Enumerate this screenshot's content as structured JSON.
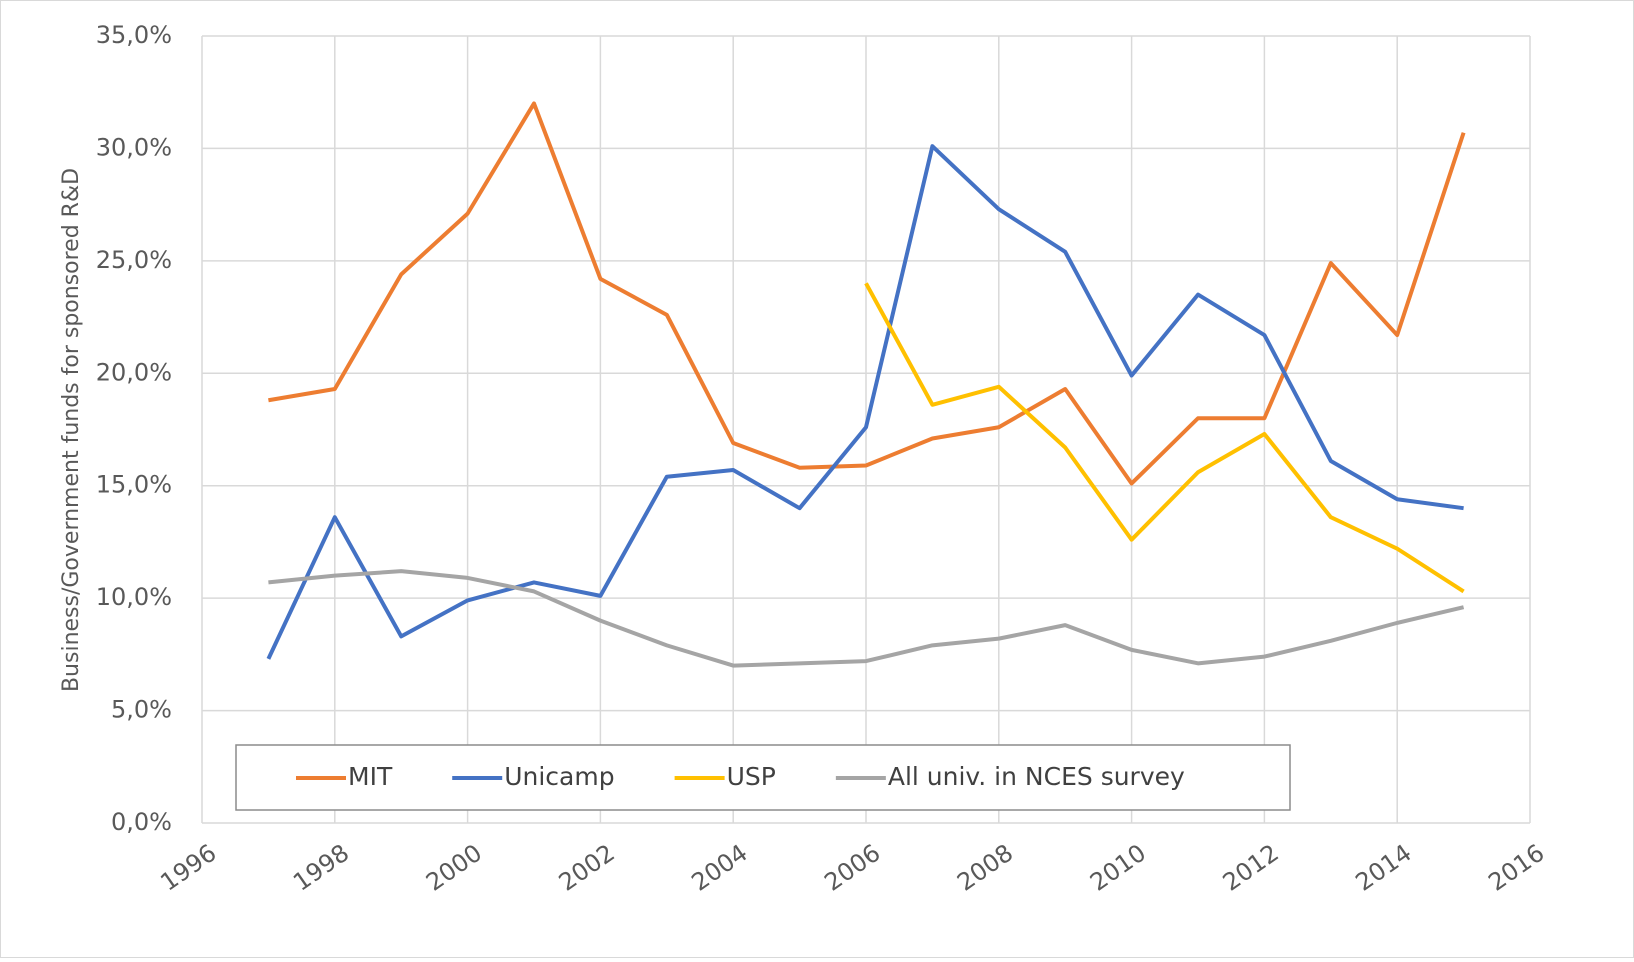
{
  "chart_data": {
    "type": "line",
    "y_label": "Business/Government  funds for sponsored R&D",
    "x": [
      1997,
      1998,
      1999,
      2000,
      2001,
      2002,
      2003,
      2004,
      2005,
      2006,
      2007,
      2008,
      2009,
      2010,
      2011,
      2012,
      2013,
      2014,
      2015
    ],
    "series": [
      {
        "name": "MIT",
        "color": "#ed7d31",
        "values": [
          18.8,
          19.3,
          24.4,
          27.1,
          32.0,
          24.2,
          22.6,
          16.9,
          15.8,
          15.9,
          17.1,
          17.6,
          19.3,
          15.1,
          18.0,
          18.0,
          24.9,
          21.7,
          30.7
        ]
      },
      {
        "name": "Unicamp",
        "color": "#4472c4",
        "values": [
          7.3,
          13.6,
          8.3,
          9.9,
          10.7,
          10.1,
          15.4,
          15.7,
          14.0,
          17.6,
          30.1,
          27.3,
          25.4,
          19.9,
          23.5,
          21.7,
          16.1,
          14.4,
          14.0
        ]
      },
      {
        "name": "USP",
        "color": "#ffc000",
        "values": [
          null,
          null,
          null,
          null,
          null,
          null,
          null,
          null,
          null,
          24.0,
          18.6,
          19.4,
          16.7,
          12.6,
          15.6,
          17.3,
          13.6,
          12.2,
          10.3
        ]
      },
      {
        "name": "All univ. in NCES survey",
        "color": "#a5a5a5",
        "values": [
          10.7,
          11.0,
          11.2,
          10.9,
          10.3,
          9.0,
          7.9,
          7.0,
          7.1,
          7.2,
          7.9,
          8.2,
          8.8,
          7.7,
          7.1,
          7.4,
          8.1,
          8.9,
          9.6
        ]
      }
    ],
    "xlim": [
      1996,
      2016
    ],
    "xticks": [
      1996,
      1998,
      2000,
      2002,
      2004,
      2006,
      2008,
      2010,
      2012,
      2014,
      2016
    ],
    "ylim": [
      0,
      35
    ],
    "yticks": [
      {
        "value": 0,
        "label": "0,0%"
      },
      {
        "value": 5,
        "label": "5,0%"
      },
      {
        "value": 10,
        "label": "10,0%"
      },
      {
        "value": 15,
        "label": "15,0%"
      },
      {
        "value": 20,
        "label": "20,0%"
      },
      {
        "value": 25,
        "label": "25,0%"
      },
      {
        "value": 30,
        "label": "30,0%"
      },
      {
        "value": 35,
        "label": "35,0%"
      }
    ],
    "grid": true,
    "legend_position": "bottom-left"
  }
}
